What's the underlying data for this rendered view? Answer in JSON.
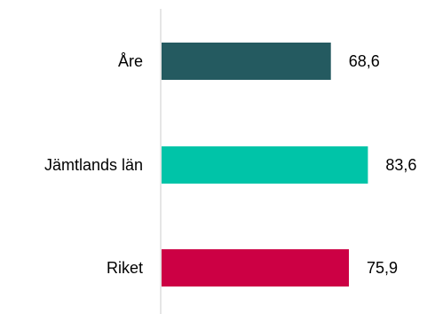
{
  "chart_data": {
    "type": "bar",
    "orientation": "horizontal",
    "categories": [
      "Åre",
      "Jämtlands län",
      "Riket"
    ],
    "values": [
      68.6,
      83.6,
      75.9
    ],
    "value_labels": [
      "68,6",
      "83,6",
      "75,9"
    ],
    "colors": [
      "#245a60",
      "#00c4a8",
      "#cc0044"
    ],
    "axis_color": "#cccccc",
    "xlim": [
      0,
      100
    ],
    "grid": false,
    "legend": "none"
  }
}
